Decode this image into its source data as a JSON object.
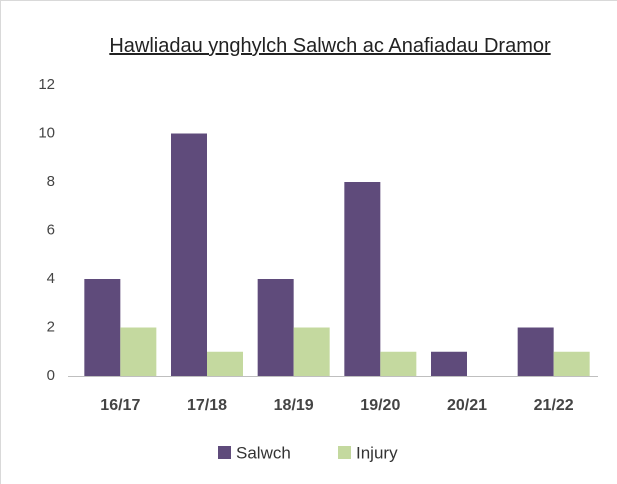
{
  "chart_data": {
    "type": "bar",
    "title": "Hawliadau ynghylch Salwch ac Anafiadau Dramor",
    "categories": [
      "16/17",
      "17/18",
      "18/19",
      "19/20",
      "20/21",
      "21/22"
    ],
    "series": [
      {
        "name": "Salwch",
        "color": "#5f4b7b",
        "values": [
          4,
          10,
          4,
          8,
          1,
          2
        ]
      },
      {
        "name": "Injury",
        "color": "#c4d99f",
        "values": [
          2,
          1,
          2,
          1,
          0,
          1
        ]
      }
    ],
    "ylim": [
      0,
      12
    ],
    "yticks": [
      0,
      2,
      4,
      6,
      8,
      10,
      12
    ],
    "grid": false,
    "legend": "bottom"
  }
}
